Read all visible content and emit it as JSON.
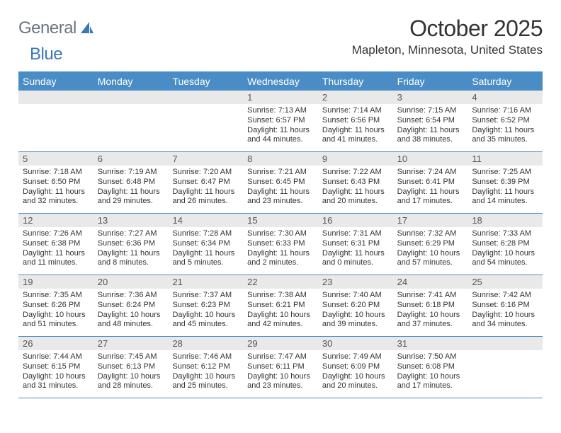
{
  "logo": {
    "part1": "General",
    "part2": "Blue"
  },
  "title": "October 2025",
  "location": "Mapleton, Minnesota, United States",
  "style": {
    "accent": "#4a8cc5",
    "header_bg": "#4a8cc5",
    "header_text": "#ffffff",
    "daynum_bg": "#e9e9e9",
    "page_bg": "#ffffff",
    "text_color": "#333333",
    "daynum_color": "#555555",
    "title_fontsize": 32,
    "location_fontsize": 17,
    "dayhead_fontsize": 14,
    "daynum_fontsize": 13,
    "cell_fontsize": 11
  },
  "day_headers": [
    "Sunday",
    "Monday",
    "Tuesday",
    "Wednesday",
    "Thursday",
    "Friday",
    "Saturday"
  ],
  "weeks": [
    [
      {
        "day": "",
        "sunrise": "",
        "sunset": "",
        "daylight1": "",
        "daylight2": ""
      },
      {
        "day": "",
        "sunrise": "",
        "sunset": "",
        "daylight1": "",
        "daylight2": ""
      },
      {
        "day": "",
        "sunrise": "",
        "sunset": "",
        "daylight1": "",
        "daylight2": ""
      },
      {
        "day": "1",
        "sunrise": "Sunrise: 7:13 AM",
        "sunset": "Sunset: 6:57 PM",
        "daylight1": "Daylight: 11 hours",
        "daylight2": "and 44 minutes."
      },
      {
        "day": "2",
        "sunrise": "Sunrise: 7:14 AM",
        "sunset": "Sunset: 6:56 PM",
        "daylight1": "Daylight: 11 hours",
        "daylight2": "and 41 minutes."
      },
      {
        "day": "3",
        "sunrise": "Sunrise: 7:15 AM",
        "sunset": "Sunset: 6:54 PM",
        "daylight1": "Daylight: 11 hours",
        "daylight2": "and 38 minutes."
      },
      {
        "day": "4",
        "sunrise": "Sunrise: 7:16 AM",
        "sunset": "Sunset: 6:52 PM",
        "daylight1": "Daylight: 11 hours",
        "daylight2": "and 35 minutes."
      }
    ],
    [
      {
        "day": "5",
        "sunrise": "Sunrise: 7:18 AM",
        "sunset": "Sunset: 6:50 PM",
        "daylight1": "Daylight: 11 hours",
        "daylight2": "and 32 minutes."
      },
      {
        "day": "6",
        "sunrise": "Sunrise: 7:19 AM",
        "sunset": "Sunset: 6:48 PM",
        "daylight1": "Daylight: 11 hours",
        "daylight2": "and 29 minutes."
      },
      {
        "day": "7",
        "sunrise": "Sunrise: 7:20 AM",
        "sunset": "Sunset: 6:47 PM",
        "daylight1": "Daylight: 11 hours",
        "daylight2": "and 26 minutes."
      },
      {
        "day": "8",
        "sunrise": "Sunrise: 7:21 AM",
        "sunset": "Sunset: 6:45 PM",
        "daylight1": "Daylight: 11 hours",
        "daylight2": "and 23 minutes."
      },
      {
        "day": "9",
        "sunrise": "Sunrise: 7:22 AM",
        "sunset": "Sunset: 6:43 PM",
        "daylight1": "Daylight: 11 hours",
        "daylight2": "and 20 minutes."
      },
      {
        "day": "10",
        "sunrise": "Sunrise: 7:24 AM",
        "sunset": "Sunset: 6:41 PM",
        "daylight1": "Daylight: 11 hours",
        "daylight2": "and 17 minutes."
      },
      {
        "day": "11",
        "sunrise": "Sunrise: 7:25 AM",
        "sunset": "Sunset: 6:39 PM",
        "daylight1": "Daylight: 11 hours",
        "daylight2": "and 14 minutes."
      }
    ],
    [
      {
        "day": "12",
        "sunrise": "Sunrise: 7:26 AM",
        "sunset": "Sunset: 6:38 PM",
        "daylight1": "Daylight: 11 hours",
        "daylight2": "and 11 minutes."
      },
      {
        "day": "13",
        "sunrise": "Sunrise: 7:27 AM",
        "sunset": "Sunset: 6:36 PM",
        "daylight1": "Daylight: 11 hours",
        "daylight2": "and 8 minutes."
      },
      {
        "day": "14",
        "sunrise": "Sunrise: 7:28 AM",
        "sunset": "Sunset: 6:34 PM",
        "daylight1": "Daylight: 11 hours",
        "daylight2": "and 5 minutes."
      },
      {
        "day": "15",
        "sunrise": "Sunrise: 7:30 AM",
        "sunset": "Sunset: 6:33 PM",
        "daylight1": "Daylight: 11 hours",
        "daylight2": "and 2 minutes."
      },
      {
        "day": "16",
        "sunrise": "Sunrise: 7:31 AM",
        "sunset": "Sunset: 6:31 PM",
        "daylight1": "Daylight: 11 hours",
        "daylight2": "and 0 minutes."
      },
      {
        "day": "17",
        "sunrise": "Sunrise: 7:32 AM",
        "sunset": "Sunset: 6:29 PM",
        "daylight1": "Daylight: 10 hours",
        "daylight2": "and 57 minutes."
      },
      {
        "day": "18",
        "sunrise": "Sunrise: 7:33 AM",
        "sunset": "Sunset: 6:28 PM",
        "daylight1": "Daylight: 10 hours",
        "daylight2": "and 54 minutes."
      }
    ],
    [
      {
        "day": "19",
        "sunrise": "Sunrise: 7:35 AM",
        "sunset": "Sunset: 6:26 PM",
        "daylight1": "Daylight: 10 hours",
        "daylight2": "and 51 minutes."
      },
      {
        "day": "20",
        "sunrise": "Sunrise: 7:36 AM",
        "sunset": "Sunset: 6:24 PM",
        "daylight1": "Daylight: 10 hours",
        "daylight2": "and 48 minutes."
      },
      {
        "day": "21",
        "sunrise": "Sunrise: 7:37 AM",
        "sunset": "Sunset: 6:23 PM",
        "daylight1": "Daylight: 10 hours",
        "daylight2": "and 45 minutes."
      },
      {
        "day": "22",
        "sunrise": "Sunrise: 7:38 AM",
        "sunset": "Sunset: 6:21 PM",
        "daylight1": "Daylight: 10 hours",
        "daylight2": "and 42 minutes."
      },
      {
        "day": "23",
        "sunrise": "Sunrise: 7:40 AM",
        "sunset": "Sunset: 6:20 PM",
        "daylight1": "Daylight: 10 hours",
        "daylight2": "and 39 minutes."
      },
      {
        "day": "24",
        "sunrise": "Sunrise: 7:41 AM",
        "sunset": "Sunset: 6:18 PM",
        "daylight1": "Daylight: 10 hours",
        "daylight2": "and 37 minutes."
      },
      {
        "day": "25",
        "sunrise": "Sunrise: 7:42 AM",
        "sunset": "Sunset: 6:16 PM",
        "daylight1": "Daylight: 10 hours",
        "daylight2": "and 34 minutes."
      }
    ],
    [
      {
        "day": "26",
        "sunrise": "Sunrise: 7:44 AM",
        "sunset": "Sunset: 6:15 PM",
        "daylight1": "Daylight: 10 hours",
        "daylight2": "and 31 minutes."
      },
      {
        "day": "27",
        "sunrise": "Sunrise: 7:45 AM",
        "sunset": "Sunset: 6:13 PM",
        "daylight1": "Daylight: 10 hours",
        "daylight2": "and 28 minutes."
      },
      {
        "day": "28",
        "sunrise": "Sunrise: 7:46 AM",
        "sunset": "Sunset: 6:12 PM",
        "daylight1": "Daylight: 10 hours",
        "daylight2": "and 25 minutes."
      },
      {
        "day": "29",
        "sunrise": "Sunrise: 7:47 AM",
        "sunset": "Sunset: 6:11 PM",
        "daylight1": "Daylight: 10 hours",
        "daylight2": "and 23 minutes."
      },
      {
        "day": "30",
        "sunrise": "Sunrise: 7:49 AM",
        "sunset": "Sunset: 6:09 PM",
        "daylight1": "Daylight: 10 hours",
        "daylight2": "and 20 minutes."
      },
      {
        "day": "31",
        "sunrise": "Sunrise: 7:50 AM",
        "sunset": "Sunset: 6:08 PM",
        "daylight1": "Daylight: 10 hours",
        "daylight2": "and 17 minutes."
      },
      {
        "day": "",
        "sunrise": "",
        "sunset": "",
        "daylight1": "",
        "daylight2": ""
      }
    ]
  ]
}
